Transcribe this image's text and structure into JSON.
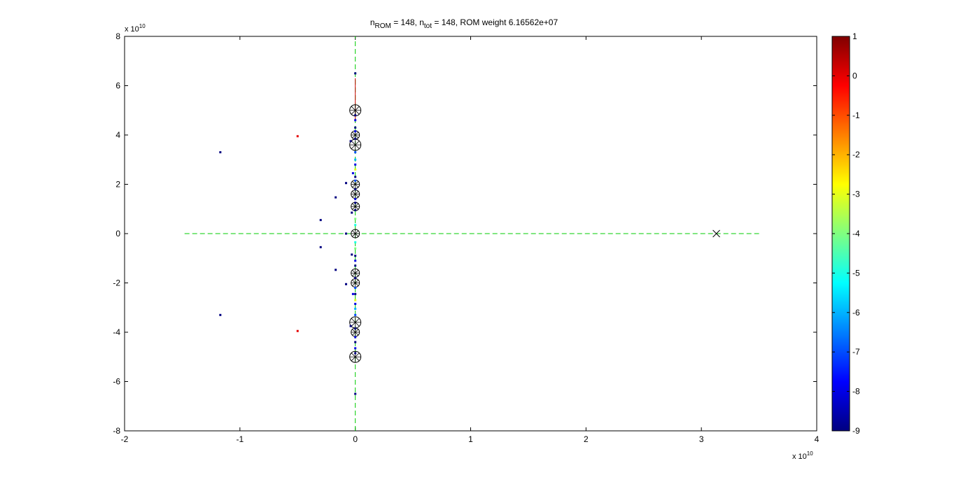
{
  "chart_data": {
    "type": "scatter",
    "title": {
      "p1": "n",
      "s1": "ROM",
      "p2": " = 148, n",
      "s2": "tot",
      "p3": " = 148,  ROM weight 6.16562e+07"
    },
    "xlim": [
      -2,
      4
    ],
    "ylim": [
      -8,
      8
    ],
    "xticks": [
      -2,
      -1,
      0,
      1,
      2,
      3,
      4
    ],
    "yticks": [
      -8,
      -6,
      -4,
      -2,
      0,
      2,
      4,
      6,
      8
    ],
    "x_exponent": {
      "base": "x 10",
      "exp": "10"
    },
    "y_exponent": {
      "base": "x 10",
      "exp": "10"
    },
    "grid": false,
    "dashed_axes": {
      "color": "#00cc00",
      "horizontal": {
        "y": 0,
        "x": [
          -1.48,
          3.5
        ]
      },
      "vertical": {
        "x": 0,
        "y": [
          -8,
          8
        ]
      }
    },
    "red_segment": {
      "color": "#cc0000",
      "x": 0,
      "y": [
        4.6,
        6.3
      ]
    },
    "cross_marker": {
      "x": 3.13,
      "y": 0
    },
    "circled_markers": [
      {
        "y": 5.0,
        "r": 8
      },
      {
        "y": 4.0,
        "r": 6
      },
      {
        "y": 3.6,
        "r": 8
      },
      {
        "y": 2.0,
        "r": 6
      },
      {
        "y": 1.6,
        "r": 6
      },
      {
        "y": 1.1,
        "r": 6
      },
      {
        "y": 0.0,
        "r": 6
      },
      {
        "y": -1.6,
        "r": 6
      },
      {
        "y": -2.0,
        "r": 6
      },
      {
        "y": -3.6,
        "r": 8
      },
      {
        "y": -4.0,
        "r": 6
      },
      {
        "y": -5.0,
        "r": 8
      }
    ],
    "points": [
      {
        "x": -1.17,
        "y": 3.3,
        "c": -9
      },
      {
        "x": -1.17,
        "y": -3.3,
        "c": -9
      },
      {
        "x": -0.5,
        "y": 3.95,
        "c": 0
      },
      {
        "x": -0.5,
        "y": -3.95,
        "c": 0
      },
      {
        "x": -0.3,
        "y": 0.55,
        "c": -9
      },
      {
        "x": -0.3,
        "y": -0.55,
        "c": -9
      },
      {
        "x": -0.17,
        "y": 1.47,
        "c": -9
      },
      {
        "x": -0.17,
        "y": -1.47,
        "c": -9
      },
      {
        "x": -0.08,
        "y": 2.05,
        "c": -9
      },
      {
        "x": -0.08,
        "y": -2.05,
        "c": -9
      },
      {
        "x": -0.04,
        "y": 3.75,
        "c": -9
      },
      {
        "x": -0.04,
        "y": -3.75,
        "c": -9
      },
      {
        "x": -0.03,
        "y": 0.85,
        "c": -9
      },
      {
        "x": -0.03,
        "y": -0.85,
        "c": -9
      },
      {
        "x": -0.02,
        "y": 2.45,
        "c": -8
      },
      {
        "x": -0.02,
        "y": -2.45,
        "c": -8
      },
      {
        "x": -0.08,
        "y": 0.0,
        "c": -9
      },
      {
        "x": 0,
        "y": 6.5,
        "c": -9
      },
      {
        "x": 0,
        "y": -6.5,
        "c": -9
      },
      {
        "x": 0,
        "y": 4.8,
        "c": -9
      },
      {
        "x": 0,
        "y": 4.6,
        "c": -8
      },
      {
        "x": 0,
        "y": 4.3,
        "c": -9
      },
      {
        "x": 0,
        "y": 4.15,
        "c": -8
      },
      {
        "x": 0,
        "y": 3.85,
        "c": -9
      },
      {
        "x": 0,
        "y": 3.3,
        "c": -7
      },
      {
        "x": 0,
        "y": 3.0,
        "c": -6
      },
      {
        "x": 0,
        "y": 2.8,
        "c": -8
      },
      {
        "x": 0,
        "y": 2.6,
        "c": -3
      },
      {
        "x": 0,
        "y": 2.3,
        "c": -9
      },
      {
        "x": 0,
        "y": 2.15,
        "c": -7
      },
      {
        "x": 0,
        "y": 1.8,
        "c": -9
      },
      {
        "x": 0,
        "y": 1.4,
        "c": -8
      },
      {
        "x": 0,
        "y": 1.25,
        "c": -9
      },
      {
        "x": 0,
        "y": 0.95,
        "c": -9
      },
      {
        "x": 0,
        "y": 0.6,
        "c": -4
      },
      {
        "x": 0,
        "y": 0.35,
        "c": -5
      },
      {
        "x": 0,
        "y": -0.35,
        "c": -5
      },
      {
        "x": 0,
        "y": -0.6,
        "c": -4
      },
      {
        "x": 0,
        "y": -0.9,
        "c": -9
      },
      {
        "x": 0,
        "y": -1.1,
        "c": -8
      },
      {
        "x": 0,
        "y": -1.3,
        "c": -9
      },
      {
        "x": 0,
        "y": -1.8,
        "c": -9
      },
      {
        "x": 0,
        "y": -2.2,
        "c": -7
      },
      {
        "x": 0,
        "y": -2.45,
        "c": -9
      },
      {
        "x": 0,
        "y": -2.7,
        "c": -3
      },
      {
        "x": 0,
        "y": -2.85,
        "c": -8
      },
      {
        "x": 0,
        "y": -3.05,
        "c": -6
      },
      {
        "x": 0,
        "y": -3.3,
        "c": -7
      },
      {
        "x": 0,
        "y": -3.85,
        "c": -9
      },
      {
        "x": 0,
        "y": -4.2,
        "c": -8
      },
      {
        "x": 0,
        "y": -4.4,
        "c": -9
      },
      {
        "x": 0,
        "y": -4.65,
        "c": -8
      },
      {
        "x": 0,
        "y": -4.85,
        "c": -9
      }
    ],
    "colorbar": {
      "colormap": "jet",
      "clim": [
        -9,
        1
      ],
      "ticks": [
        1,
        0,
        -1,
        -2,
        -3,
        -4,
        -5,
        -6,
        -7,
        -8,
        -9
      ]
    }
  }
}
